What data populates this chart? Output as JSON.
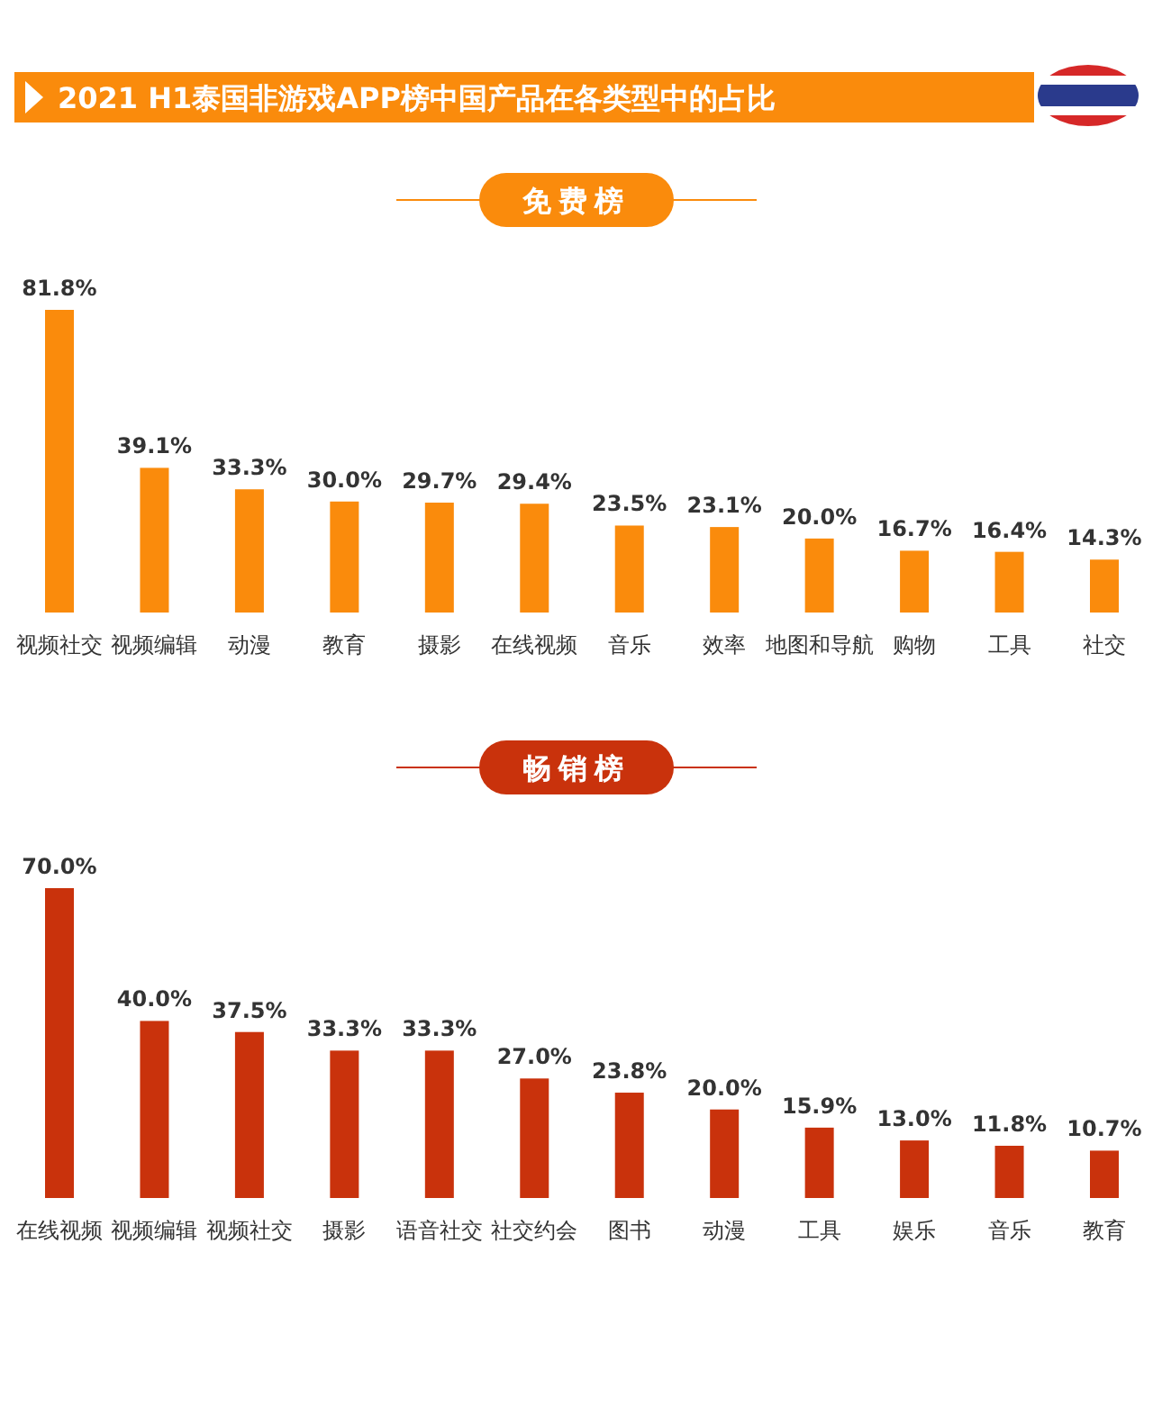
{
  "chart_data": [
    {
      "type": "bar",
      "title": "2021 H1泰国非游戏APP榜中国产品在各类型中的占比",
      "subtitle": "免费榜",
      "color": "#fa8b0c",
      "categories": [
        "视频社交",
        "视频编辑",
        "动漫",
        "教育",
        "摄影",
        "在线视频",
        "音乐",
        "效率",
        "地图和导航",
        "购物",
        "工具",
        "社交"
      ],
      "values": [
        81.8,
        39.1,
        33.3,
        30.0,
        29.7,
        29.4,
        23.5,
        23.1,
        20.0,
        16.7,
        16.4,
        14.3
      ],
      "value_labels": [
        "81.8%",
        "39.1%",
        "33.3%",
        "30.0%",
        "29.7%",
        "29.4%",
        "23.5%",
        "23.1%",
        "20.0%",
        "16.7%",
        "16.4%",
        "14.3%"
      ]
    },
    {
      "type": "bar",
      "title": "畅销榜",
      "color": "#c9320c",
      "categories": [
        "在线视频",
        "视频编辑",
        "视频社交",
        "摄影",
        "语音社交",
        "社交约会",
        "图书",
        "动漫",
        "工具",
        "娱乐",
        "音乐",
        "教育"
      ],
      "values": [
        70.0,
        40.0,
        37.5,
        33.3,
        33.3,
        27.0,
        23.8,
        20.0,
        15.9,
        13.0,
        11.8,
        10.7
      ],
      "value_labels": [
        "70.0%",
        "40.0%",
        "37.5%",
        "33.3%",
        "33.3%",
        "27.0%",
        "23.8%",
        "20.0%",
        "15.9%",
        "13.0%",
        "11.8%",
        "10.7%"
      ]
    }
  ]
}
